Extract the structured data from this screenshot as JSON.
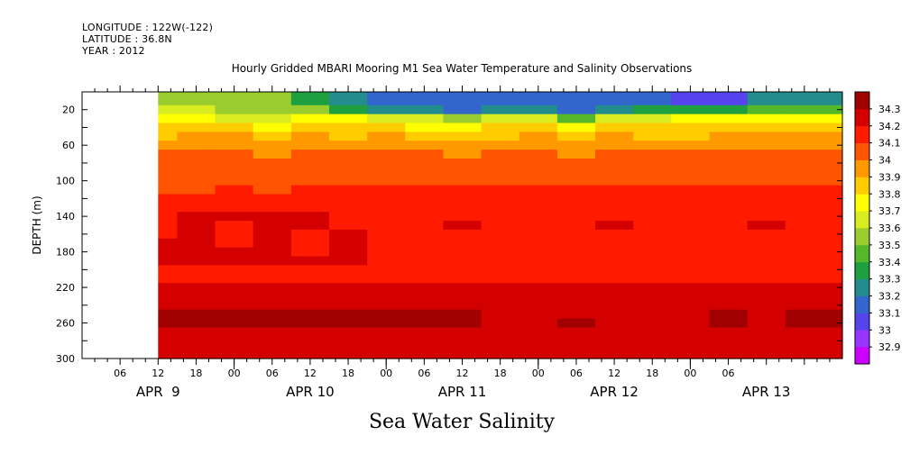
{
  "header": {
    "longitude": "LONGITUDE : 122W(-122)",
    "latitude": "LATITUDE : 36.8N",
    "year": "YEAR : 2012"
  },
  "chart_data": {
    "type": "heatmap",
    "title": "Hourly Gridded MBARI Mooring M1 Sea Water Temperature and Salinity Observations",
    "xlabel": "Sea Water Salinity",
    "ylabel": "DEPTH (m)",
    "x_hour_range": [
      0,
      120
    ],
    "data_start_hour": 12,
    "ylim": [
      300,
      0
    ],
    "y_ticks": [
      20,
      60,
      100,
      140,
      180,
      220,
      260,
      300
    ],
    "x_tick_labels": [
      {
        "hour": 6,
        "label": "06"
      },
      {
        "hour": 12,
        "label": "12"
      },
      {
        "hour": 18,
        "label": "18"
      },
      {
        "hour": 24,
        "label": "00"
      },
      {
        "hour": 30,
        "label": "06"
      },
      {
        "hour": 36,
        "label": "12"
      },
      {
        "hour": 42,
        "label": "18"
      },
      {
        "hour": 48,
        "label": "00"
      },
      {
        "hour": 54,
        "label": "06"
      },
      {
        "hour": 60,
        "label": "12"
      },
      {
        "hour": 66,
        "label": "18"
      },
      {
        "hour": 72,
        "label": "00"
      },
      {
        "hour": 78,
        "label": "06"
      },
      {
        "hour": 84,
        "label": "12"
      },
      {
        "hour": 90,
        "label": "18"
      },
      {
        "hour": 96,
        "label": "00"
      },
      {
        "hour": 102,
        "label": "06"
      }
    ],
    "date_labels": [
      {
        "hour": 12,
        "label": "APR  9"
      },
      {
        "hour": 36,
        "label": "APR 10"
      },
      {
        "hour": 60,
        "label": "APR 11"
      },
      {
        "hour": 84,
        "label": "APR 12"
      },
      {
        "hour": 108,
        "label": "APR 13"
      }
    ],
    "colorbar": {
      "levels": [
        "32.9",
        "33",
        "33.1",
        "33.2",
        "33.3",
        "33.4",
        "33.5",
        "33.6",
        "33.7",
        "33.8",
        "33.9",
        "34",
        "34.1",
        "34.2",
        "34.3"
      ],
      "colors": [
        "#cc00ff",
        "#9933ff",
        "#5544ee",
        "#3366cc",
        "#238c8c",
        "#1fa040",
        "#55b82a",
        "#9bcc2e",
        "#d8ec20",
        "#ffff00",
        "#ffcc00",
        "#ff9900",
        "#ff5500",
        "#ff1a00",
        "#d40000",
        "#a00000"
      ]
    },
    "time_hours": [
      12,
      18,
      24,
      30,
      36,
      42,
      48,
      54,
      60,
      66,
      72,
      78,
      84,
      90,
      96,
      102,
      108,
      114
    ],
    "depth_m": [
      10,
      20,
      30,
      40,
      50,
      60,
      70,
      80,
      90,
      100,
      110,
      120,
      130,
      140,
      150,
      160,
      170,
      180,
      190,
      200,
      210,
      220,
      230,
      240,
      250,
      260,
      270,
      280,
      290,
      300
    ],
    "salinity": [
      [
        33.55,
        33.55,
        33.5,
        33.5,
        33.35,
        33.2,
        33.1,
        33.1,
        33.1,
        33.15,
        33.15,
        33.1,
        33.1,
        33.15,
        33.05,
        33.05,
        33.2,
        33.2
      ],
      [
        33.6,
        33.6,
        33.58,
        33.55,
        33.5,
        33.35,
        33.25,
        33.2,
        33.15,
        33.25,
        33.2,
        33.15,
        33.25,
        33.3,
        33.3,
        33.35,
        33.45,
        33.45
      ],
      [
        33.7,
        33.7,
        33.68,
        33.65,
        33.7,
        33.75,
        33.65,
        33.6,
        33.55,
        33.65,
        33.6,
        33.45,
        33.65,
        33.6,
        33.7,
        33.72,
        33.72,
        33.72
      ],
      [
        33.8,
        33.8,
        33.8,
        33.75,
        33.85,
        33.8,
        33.8,
        33.78,
        33.75,
        33.8,
        33.82,
        33.75,
        33.85,
        33.8,
        33.8,
        33.82,
        33.82,
        33.82
      ],
      [
        33.88,
        33.9,
        33.9,
        33.85,
        33.92,
        33.88,
        33.9,
        33.88,
        33.85,
        33.88,
        33.92,
        33.85,
        33.92,
        33.88,
        33.88,
        33.9,
        33.9,
        33.9
      ],
      [
        33.95,
        33.95,
        33.95,
        33.9,
        33.98,
        33.95,
        33.95,
        33.95,
        33.92,
        33.95,
        33.98,
        33.92,
        33.98,
        33.95,
        33.95,
        33.95,
        33.95,
        33.95
      ],
      [
        34.0,
        34.0,
        34.0,
        33.98,
        34.02,
        34.0,
        34.0,
        34.0,
        33.98,
        34.0,
        34.02,
        33.98,
        34.02,
        34.0,
        34.0,
        34.0,
        34.0,
        34.0
      ],
      [
        34.02,
        34.03,
        34.03,
        34.01,
        34.05,
        34.03,
        34.03,
        34.03,
        34.02,
        34.03,
        34.05,
        34.02,
        34.05,
        34.03,
        34.03,
        34.03,
        34.03,
        34.03
      ],
      [
        34.05,
        34.05,
        34.05,
        34.04,
        34.07,
        34.05,
        34.05,
        34.05,
        34.05,
        34.06,
        34.07,
        34.05,
        34.07,
        34.05,
        34.05,
        34.05,
        34.05,
        34.05
      ],
      [
        34.07,
        34.07,
        34.08,
        34.07,
        34.09,
        34.08,
        34.08,
        34.08,
        34.08,
        34.09,
        34.09,
        34.08,
        34.09,
        34.08,
        34.08,
        34.08,
        34.08,
        34.08
      ],
      [
        34.09,
        34.09,
        34.1,
        34.09,
        34.11,
        34.1,
        34.1,
        34.11,
        34.1,
        34.11,
        34.11,
        34.1,
        34.11,
        34.11,
        34.1,
        34.1,
        34.1,
        34.1
      ],
      [
        34.11,
        34.12,
        34.12,
        34.12,
        34.13,
        34.12,
        34.12,
        34.13,
        34.12,
        34.13,
        34.13,
        34.12,
        34.13,
        34.13,
        34.12,
        34.12,
        34.12,
        34.12
      ],
      [
        34.13,
        34.15,
        34.15,
        34.15,
        34.15,
        34.14,
        34.14,
        34.15,
        34.14,
        34.14,
        34.14,
        34.14,
        34.14,
        34.14,
        34.13,
        34.13,
        34.14,
        34.14
      ],
      [
        34.15,
        34.2,
        34.2,
        34.22,
        34.2,
        34.17,
        34.16,
        34.17,
        34.16,
        34.16,
        34.16,
        34.17,
        34.16,
        34.16,
        34.15,
        34.15,
        34.16,
        34.16
      ],
      [
        34.17,
        34.22,
        34.16,
        34.22,
        34.22,
        34.18,
        34.17,
        34.18,
        34.21,
        34.18,
        34.17,
        34.19,
        34.21,
        34.18,
        34.17,
        34.17,
        34.22,
        34.17
      ],
      [
        34.19,
        34.22,
        34.16,
        34.23,
        34.16,
        34.21,
        34.18,
        34.19,
        34.18,
        34.18,
        34.17,
        34.18,
        34.17,
        34.18,
        34.18,
        34.18,
        34.18,
        34.18
      ],
      [
        34.2,
        34.22,
        34.16,
        34.23,
        34.16,
        34.21,
        34.18,
        34.18,
        34.17,
        34.18,
        34.17,
        34.17,
        34.17,
        34.17,
        34.17,
        34.17,
        34.17,
        34.17
      ],
      [
        34.21,
        34.22,
        34.22,
        34.22,
        34.18,
        34.2,
        34.18,
        34.18,
        34.17,
        34.18,
        34.17,
        34.17,
        34.17,
        34.17,
        34.17,
        34.17,
        34.17,
        34.17
      ],
      [
        34.22,
        34.22,
        34.23,
        34.22,
        34.2,
        34.2,
        34.18,
        34.18,
        34.18,
        34.18,
        34.17,
        34.17,
        34.17,
        34.17,
        34.17,
        34.15,
        34.17,
        34.17
      ],
      [
        34.19,
        34.18,
        34.18,
        34.18,
        34.18,
        34.18,
        34.18,
        34.18,
        34.18,
        34.18,
        34.18,
        34.18,
        34.18,
        34.18,
        34.18,
        34.18,
        34.18,
        34.18
      ],
      [
        34.18,
        34.18,
        34.18,
        34.18,
        34.18,
        34.18,
        34.18,
        34.18,
        34.18,
        34.18,
        34.18,
        34.18,
        34.18,
        34.18,
        34.18,
        34.18,
        34.18,
        34.18
      ],
      [
        34.21,
        34.21,
        34.21,
        34.21,
        34.21,
        34.21,
        34.21,
        34.21,
        34.21,
        34.21,
        34.21,
        34.21,
        34.21,
        34.21,
        34.21,
        34.21,
        34.21,
        34.22
      ],
      [
        34.23,
        34.23,
        34.23,
        34.23,
        34.23,
        34.23,
        34.23,
        34.23,
        34.23,
        34.23,
        34.23,
        34.23,
        34.23,
        34.23,
        34.23,
        34.23,
        34.23,
        34.23
      ],
      [
        34.26,
        34.27,
        34.27,
        34.26,
        34.26,
        34.25,
        34.25,
        34.25,
        34.24,
        34.24,
        34.24,
        34.25,
        34.24,
        34.24,
        34.24,
        34.25,
        34.24,
        34.25
      ],
      [
        34.31,
        34.32,
        34.32,
        34.31,
        34.31,
        34.3,
        34.3,
        34.3,
        34.3,
        34.28,
        34.26,
        34.29,
        34.26,
        34.28,
        34.29,
        34.3,
        34.28,
        34.31
      ],
      [
        34.31,
        34.32,
        34.32,
        34.31,
        34.31,
        34.3,
        34.3,
        34.3,
        34.3,
        34.29,
        34.28,
        34.31,
        34.28,
        34.29,
        34.29,
        34.3,
        34.29,
        34.31
      ],
      [
        34.27,
        34.28,
        34.28,
        34.27,
        34.27,
        34.27,
        34.27,
        34.26,
        34.26,
        34.25,
        34.25,
        34.26,
        34.25,
        34.25,
        34.26,
        34.26,
        34.26,
        34.27
      ],
      [
        34.24,
        34.24,
        34.25,
        34.24,
        34.24,
        34.23,
        34.24,
        34.24,
        34.23,
        34.23,
        34.23,
        34.23,
        34.23,
        34.23,
        34.23,
        34.24,
        34.24,
        34.24
      ],
      [
        34.22,
        34.22,
        34.23,
        34.22,
        34.22,
        34.22,
        34.22,
        34.22,
        34.22,
        34.22,
        34.22,
        34.22,
        34.22,
        34.22,
        34.22,
        34.22,
        34.22,
        34.22
      ],
      [
        34.22,
        34.22,
        34.22,
        34.22,
        34.22,
        34.22,
        34.22,
        34.22,
        34.22,
        34.22,
        34.22,
        34.22,
        34.22,
        34.22,
        34.22,
        34.22,
        34.22,
        34.22
      ]
    ]
  }
}
